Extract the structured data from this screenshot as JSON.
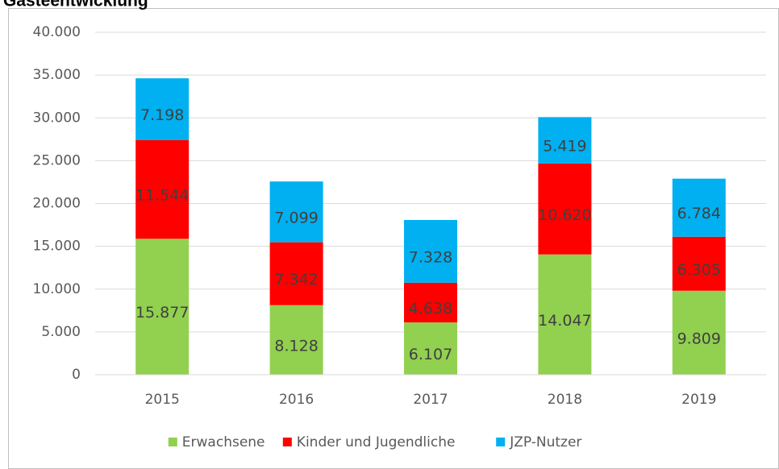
{
  "chart_data": {
    "type": "stacked_bar",
    "title": "Gästeentwicklung",
    "categories": [
      "2015",
      "2016",
      "2017",
      "2018",
      "2019"
    ],
    "series": [
      {
        "name": "Erwachsene",
        "color": "#92d050",
        "values": [
          15877,
          8128,
          6107,
          14047,
          9809
        ],
        "value_labels": [
          "15.877",
          "8.128",
          "6.107",
          "14.047",
          "9.809"
        ]
      },
      {
        "name": "Kinder und Jugendliche",
        "color": "#ff0000",
        "values": [
          11544,
          7342,
          4638,
          10620,
          6305
        ],
        "value_labels": [
          "11.544",
          "7.342",
          "4.638",
          "10.620",
          "6.305"
        ]
      },
      {
        "name": "JZP-Nutzer",
        "color": "#00b0f0",
        "values": [
          7198,
          7099,
          7328,
          5419,
          6784
        ],
        "value_labels": [
          "7.198",
          "7.099",
          "7.328",
          "5.419",
          "6.784"
        ]
      }
    ],
    "ylim": [
      0,
      40000
    ],
    "yticks": [
      0,
      {
        "value": 5000,
        "label": "5.000"
      },
      {
        "value": 10000,
        "label": "10.000"
      },
      {
        "value": 15000,
        "label": "15.000"
      },
      {
        "value": 20000,
        "label": "20.000"
      },
      {
        "value": 25000,
        "label": "25.000"
      },
      {
        "value": 30000,
        "label": "30.000"
      },
      {
        "value": 35000,
        "label": "35.000"
      },
      {
        "value": 40000,
        "label": "40.000"
      }
    ],
    "grid": true,
    "legend": "bottom"
  }
}
